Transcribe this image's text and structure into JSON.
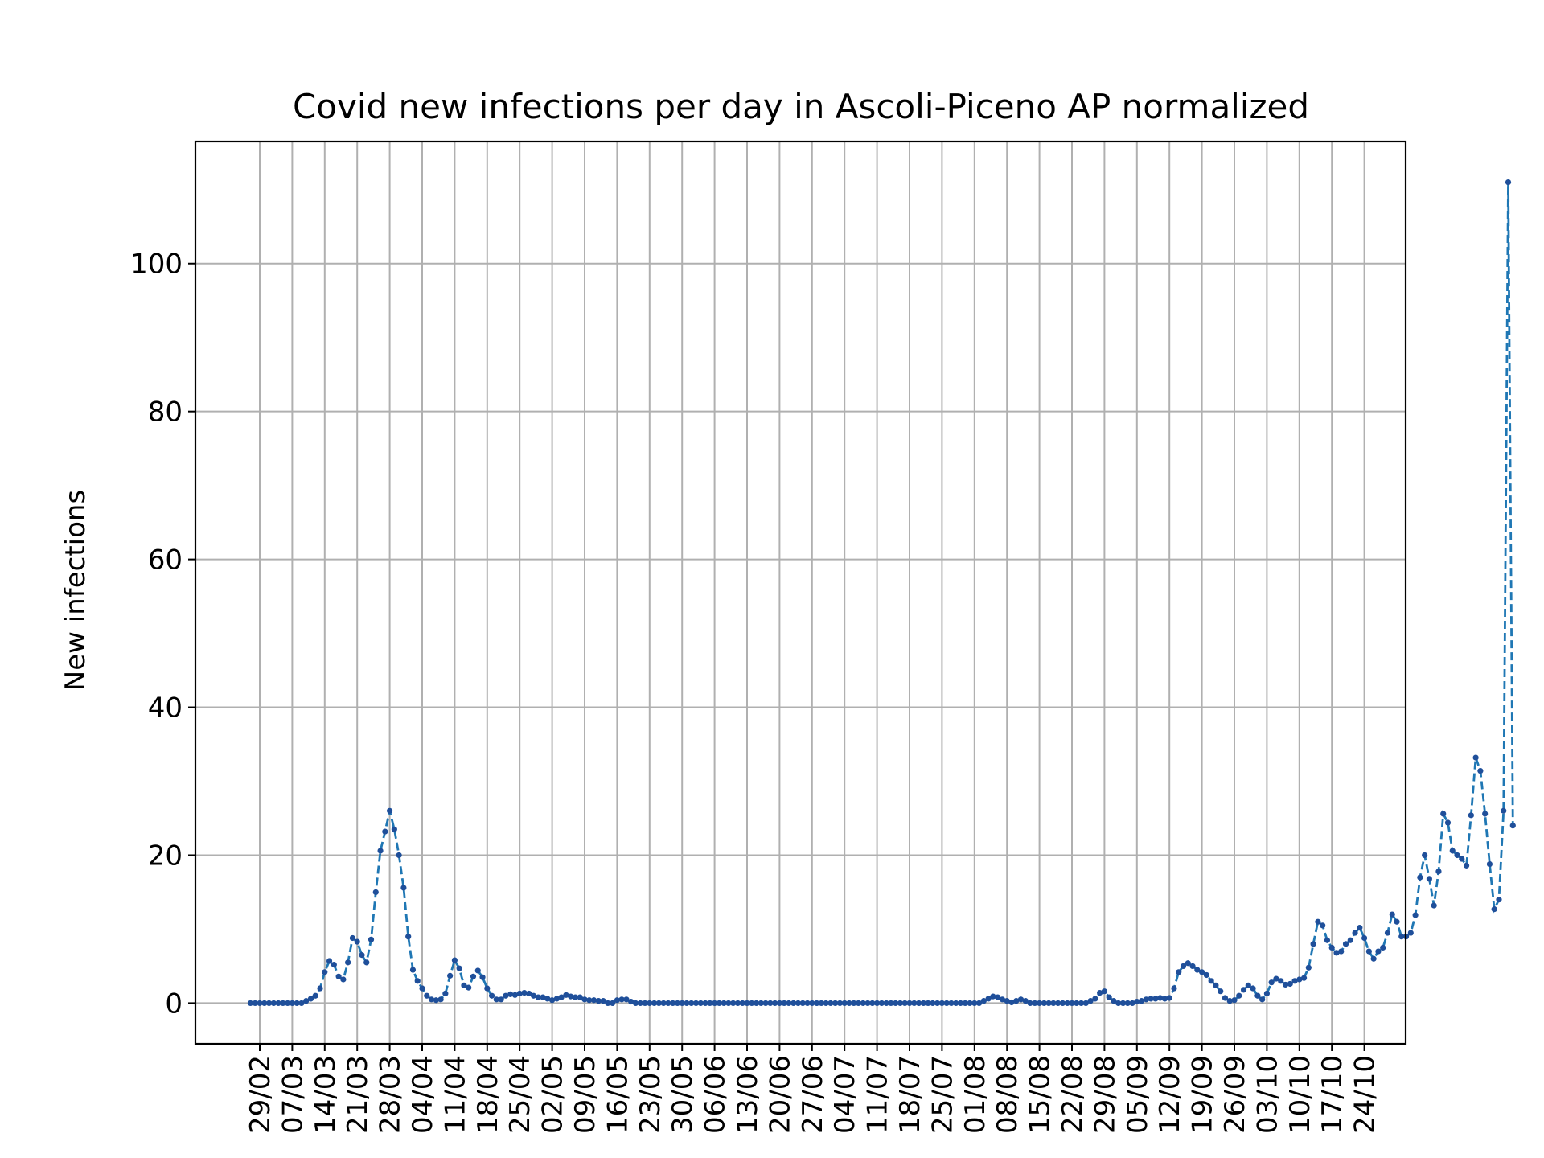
{
  "chart_data": {
    "type": "line",
    "title": "Covid new infections per day in Ascoli-Piceno AP normalized",
    "xlabel": "",
    "ylabel": "New infections",
    "grid": true,
    "ylim": [
      -5.5,
      116.5
    ],
    "yticks": [
      0,
      20,
      40,
      60,
      80,
      100
    ],
    "x_start_date": "2020-02-27",
    "x_tick_labels": [
      "29/02",
      "07/03",
      "14/03",
      "21/03",
      "28/03",
      "04/04",
      "11/04",
      "18/04",
      "25/04",
      "02/05",
      "09/05",
      "16/05",
      "23/05",
      "30/05",
      "06/06",
      "13/06",
      "20/06",
      "27/06",
      "04/07",
      "11/07",
      "18/07",
      "25/07",
      "01/08",
      "08/08",
      "15/08",
      "22/08",
      "29/08",
      "05/09",
      "12/09",
      "19/09",
      "26/09",
      "03/10",
      "10/10",
      "17/10",
      "24/10"
    ],
    "series": [
      {
        "name": "",
        "color": "#1f77b4",
        "marker_color": "#1f4f9a",
        "line_style": "dashed",
        "values": [
          0,
          0,
          0,
          0,
          0,
          0,
          0,
          0,
          0,
          0,
          0,
          0,
          0.3,
          0.6,
          1,
          2,
          4.2,
          5.7,
          5.2,
          3.6,
          3.2,
          5.5,
          8.8,
          8.3,
          6.5,
          5.5,
          8.6,
          15,
          20.6,
          23.2,
          26,
          23.5,
          20,
          15.6,
          9,
          4.5,
          3,
          2,
          1,
          0.5,
          0.4,
          0.5,
          1.3,
          3.7,
          5.8,
          4.7,
          2.4,
          2.1,
          3.6,
          4.4,
          3.5,
          2,
          1,
          0.5,
          0.5,
          1,
          1.2,
          1.1,
          1.3,
          1.4,
          1.3,
          1,
          0.8,
          0.8,
          0.6,
          0.4,
          0.6,
          0.8,
          1.1,
          0.9,
          0.8,
          0.8,
          0.5,
          0.4,
          0.4,
          0.3,
          0.3,
          0,
          0,
          0.4,
          0.5,
          0.5,
          0.2,
          0,
          0,
          0,
          0,
          0,
          0,
          0,
          0,
          0,
          0,
          0,
          0,
          0,
          0,
          0,
          0,
          0,
          0,
          0,
          0,
          0,
          0,
          0,
          0,
          0,
          0,
          0,
          0,
          0,
          0,
          0,
          0,
          0,
          0,
          0,
          0,
          0,
          0,
          0,
          0,
          0,
          0,
          0,
          0,
          0,
          0,
          0,
          0,
          0,
          0,
          0,
          0,
          0,
          0,
          0,
          0,
          0,
          0,
          0,
          0,
          0,
          0,
          0,
          0,
          0,
          0,
          0,
          0,
          0,
          0,
          0,
          0,
          0,
          0,
          0,
          0.3,
          0.6,
          0.9,
          0.8,
          0.5,
          0.3,
          0.1,
          0.3,
          0.5,
          0.3,
          0,
          0,
          0,
          0,
          0,
          0,
          0,
          0,
          0,
          0,
          0,
          0,
          0,
          0.3,
          0.6,
          1.4,
          1.6,
          0.8,
          0.3,
          0,
          0,
          0,
          0,
          0.2,
          0.3,
          0.5,
          0.6,
          0.6,
          0.7,
          0.6,
          0.7,
          2,
          4.2,
          5,
          5.4,
          5,
          4.5,
          4.2,
          3.8,
          3,
          2.4,
          1.6,
          0.7,
          0.3,
          0.4,
          1,
          1.8,
          2.4,
          2,
          1,
          0.5,
          1.3,
          2.8,
          3.3,
          3,
          2.5,
          2.6,
          3,
          3.2,
          3.4,
          4.8,
          8,
          11,
          10.5,
          8.5,
          7.5,
          6.8,
          7,
          8,
          8.5,
          9.5,
          10.2,
          8.8,
          7,
          6,
          7,
          7.5,
          9.5,
          12,
          11,
          9,
          9,
          9.5,
          11.9,
          17,
          20,
          16.8,
          13.2,
          17.8,
          25.6,
          24.4,
          20.6,
          20,
          19.5,
          18.6,
          25.4,
          33.2,
          31.4,
          25.6,
          18.8,
          12.7,
          14,
          26,
          111,
          24
        ]
      }
    ]
  }
}
